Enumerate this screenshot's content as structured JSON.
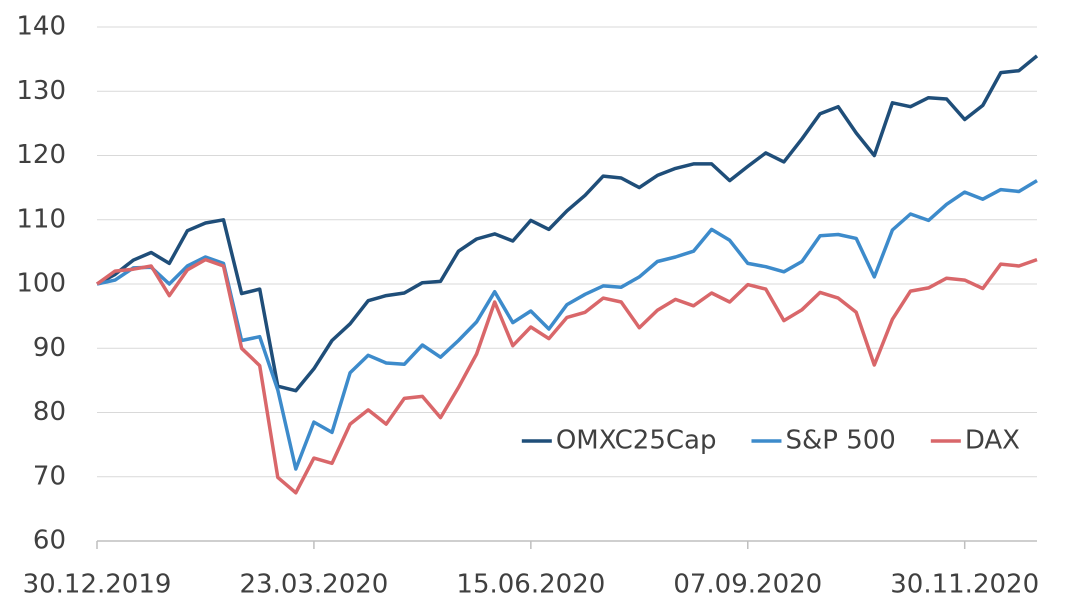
{
  "chart_data": {
    "type": "line",
    "categories": [
      "30.12.2019",
      null,
      null,
      null,
      null,
      null,
      null,
      null,
      null,
      null,
      null,
      null,
      "23.03.2020",
      null,
      null,
      null,
      null,
      null,
      null,
      null,
      null,
      null,
      null,
      null,
      "15.06.2020",
      null,
      null,
      null,
      null,
      null,
      null,
      null,
      null,
      null,
      null,
      null,
      "07.09.2020",
      null,
      null,
      null,
      null,
      null,
      null,
      null,
      null,
      null,
      null,
      null,
      "30.11.2020",
      null,
      null,
      null,
      null
    ],
    "series": [
      {
        "name": "OMXC25Cap",
        "color": "#1f4e79",
        "values": [
          100,
          101.5,
          103.7,
          104.9,
          103.2,
          108.3,
          109.5,
          110,
          98.5,
          99.2,
          84.1,
          83.4,
          86.8,
          91.2,
          93.8,
          97.4,
          98.2,
          98.6,
          100.2,
          100.4,
          105.1,
          107,
          107.8,
          106.7,
          109.9,
          108.5,
          111.4,
          113.8,
          116.8,
          116.5,
          115,
          116.9,
          118,
          118.7,
          118.7,
          116.1,
          118.3,
          120.4,
          119,
          122.6,
          126.5,
          127.6,
          123.5,
          120,
          128.2,
          127.6,
          129,
          128.8,
          125.6,
          127.8,
          132.9,
          133.2,
          135.5
        ]
      },
      {
        "name": "S&P 500",
        "color": "#3d8bcb",
        "values": [
          100,
          100.6,
          102.5,
          102.6,
          100,
          102.8,
          104.2,
          103.2,
          91.2,
          91.8,
          83.5,
          71.2,
          78.5,
          76.9,
          86.2,
          88.9,
          87.7,
          87.5,
          90.5,
          88.6,
          91.2,
          94.1,
          98.8,
          94,
          95.8,
          93,
          96.8,
          98.4,
          99.7,
          99.5,
          101.1,
          103.5,
          104.2,
          105.1,
          108.5,
          106.8,
          103.2,
          102.7,
          101.9,
          103.5,
          107.5,
          107.7,
          107.1,
          101.1,
          108.4,
          110.9,
          109.9,
          112.4,
          114.3,
          113.2,
          114.7,
          114.4,
          116.1
        ]
      },
      {
        "name": "DAX",
        "color": "#d9676a",
        "values": [
          100,
          102,
          102.3,
          102.8,
          98.2,
          102.2,
          103.8,
          102.8,
          90,
          87.3,
          69.9,
          67.5,
          72.9,
          72.1,
          78.2,
          80.4,
          78.2,
          82.2,
          82.5,
          79.2,
          83.9,
          89.1,
          97.2,
          90.4,
          93.3,
          91.5,
          94.8,
          95.6,
          97.8,
          97.2,
          93.2,
          95.9,
          97.6,
          96.6,
          98.6,
          97.2,
          99.9,
          99.2,
          94.3,
          96,
          98.7,
          97.8,
          95.6,
          87.4,
          94.5,
          98.9,
          99.4,
          100.9,
          100.6,
          99.3,
          103.1,
          102.8,
          103.8
        ]
      }
    ],
    "ylim": [
      60,
      140
    ],
    "yticks": [
      60,
      70,
      80,
      90,
      100,
      110,
      120,
      130,
      140
    ],
    "grid": true,
    "legend": "lower right"
  }
}
